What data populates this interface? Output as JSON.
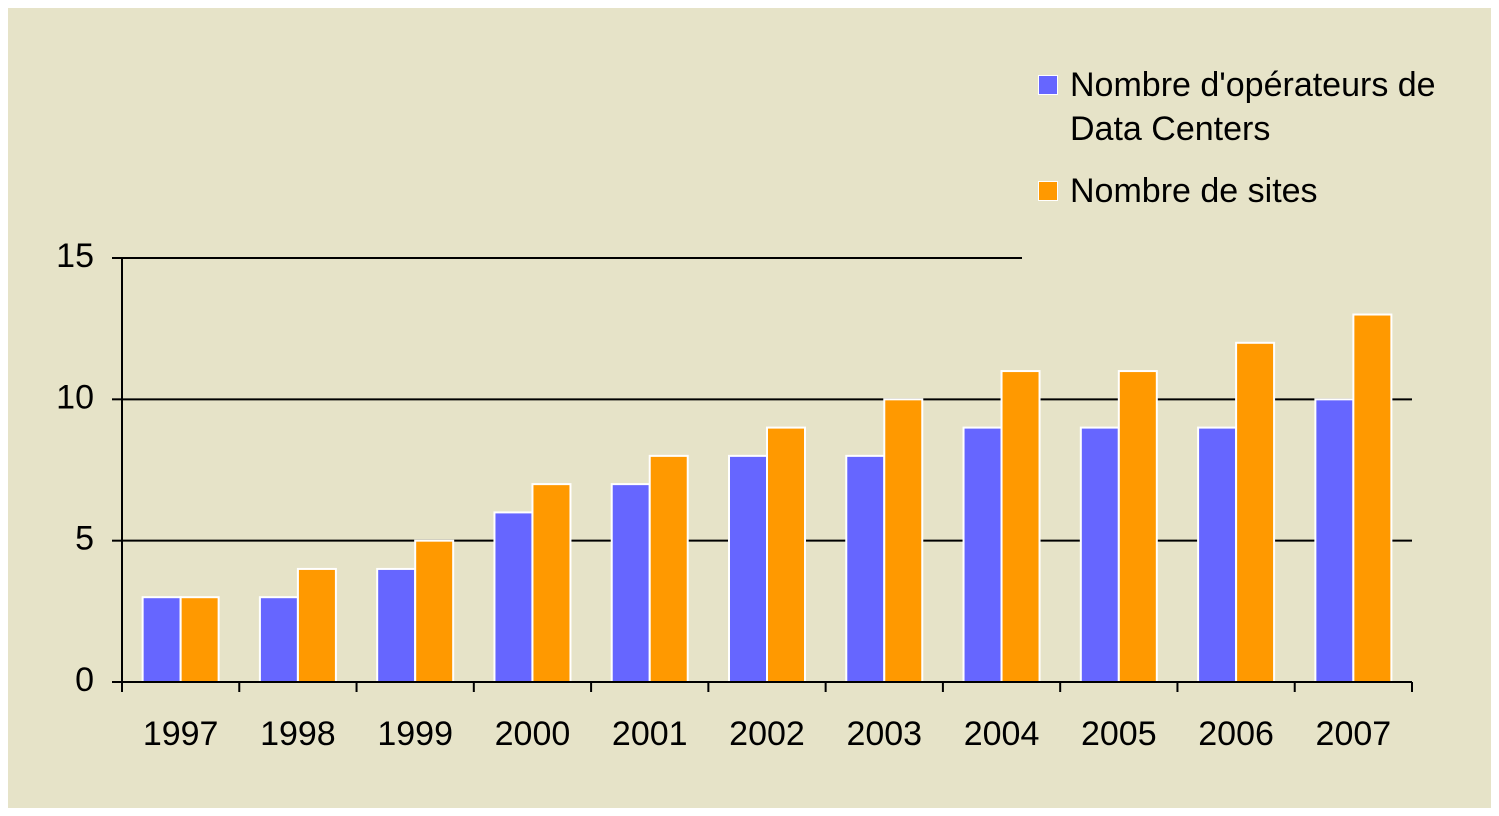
{
  "chart_data": {
    "type": "bar",
    "categories": [
      "1997",
      "1998",
      "1999",
      "2000",
      "2001",
      "2002",
      "2003",
      "2004",
      "2005",
      "2006",
      "2007"
    ],
    "series": [
      {
        "name": "Nombre d'opérateurs de Data Centers",
        "color": "#6666ff",
        "values": [
          3,
          3,
          4,
          6,
          7,
          8,
          8,
          9,
          9,
          9,
          10
        ]
      },
      {
        "name": "Nombre de sites",
        "color": "#ff9900",
        "values": [
          3,
          4,
          5,
          7,
          8,
          9,
          10,
          11,
          11,
          12,
          13
        ]
      }
    ],
    "ylim": [
      0,
      15
    ],
    "yticks": [
      0,
      5,
      10,
      15
    ],
    "grid": true,
    "legend": "upper right"
  }
}
